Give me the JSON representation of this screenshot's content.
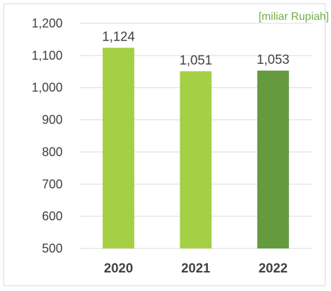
{
  "chart_data": {
    "type": "bar",
    "title": "",
    "xlabel": "",
    "ylabel": "",
    "unit_note": "[miliar Rupiah]",
    "categories": [
      "2020",
      "2021",
      "2022"
    ],
    "values": [
      1124,
      1051,
      1053
    ],
    "data_labels": [
      "1,124",
      "1,051",
      "1,053"
    ],
    "bar_colors": [
      "#a5cf45",
      "#a5cf45",
      "#659a3e"
    ],
    "ylim": [
      500,
      1200
    ],
    "yticks": [
      500,
      600,
      700,
      800,
      900,
      1000,
      1100,
      1200
    ],
    "ytick_labels": [
      "500",
      "600",
      "700",
      "800",
      "900",
      "1,000",
      "1,100",
      "1,200"
    ],
    "grid": true,
    "legend": "none"
  }
}
